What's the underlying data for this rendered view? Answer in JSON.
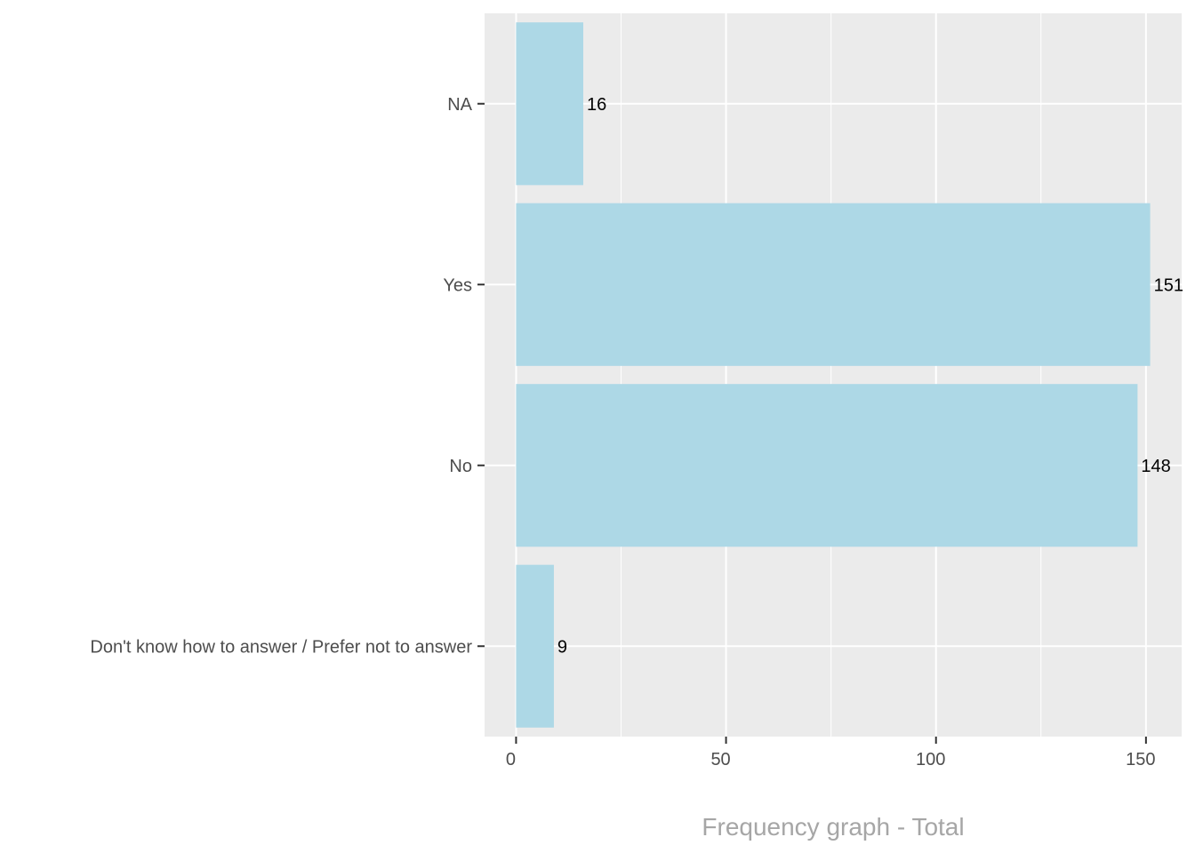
{
  "chart_data": {
    "type": "bar",
    "orientation": "horizontal",
    "categories": [
      "NA",
      "Yes",
      "No",
      "Don't know how to answer / Prefer not to answer"
    ],
    "values": [
      16,
      151,
      148,
      9
    ],
    "data_labels": [
      "16",
      "151",
      "148",
      "9"
    ],
    "xlabel": "Frequency graph - Total",
    "ylabel": "",
    "xlim": [
      -7.5,
      158.5
    ],
    "x_ticks": [
      0,
      50,
      100,
      150
    ],
    "x_tick_labels": [
      "0",
      "50",
      "100",
      "150"
    ],
    "grid": true,
    "legend": "none",
    "colors": {
      "bar": "#add8e6",
      "panel": "#ebebeb",
      "grid": "#ffffff",
      "tick_text": "#4d4d4d",
      "axis_title": "#a6a6a6",
      "data_label": "#000000"
    }
  }
}
